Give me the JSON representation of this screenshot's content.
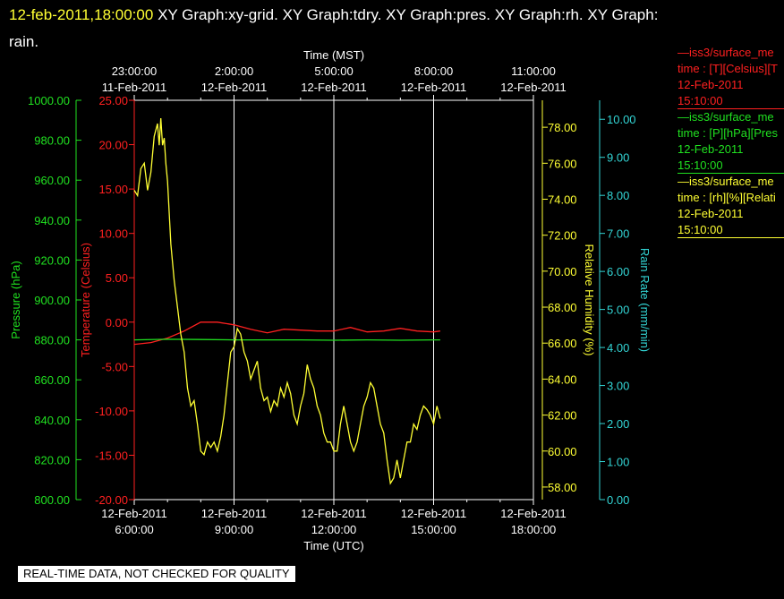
{
  "header": {
    "timestamp": "12-feb-2011,18:00:00",
    "graphs_text": "XY Graph:xy-grid.  XY Graph:tdry.  XY Graph:pres.  XY Graph:rh.  XY Graph:",
    "graphs_text_2": "rain."
  },
  "legend": [
    {
      "line": "iss3/surface_me",
      "units": "time : [T][Celsius][T",
      "date": "12-Feb-2011",
      "time": "15:10:00",
      "color": "#ff2020"
    },
    {
      "line": "iss3/surface_me",
      "units": "time : [P][hPa][Pres",
      "date": "12-Feb-2011",
      "time": "15:10:00",
      "color": "#20e020"
    },
    {
      "line": "iss3/surface_me",
      "units": "time : [rh][%][Relati",
      "date": "12-Feb-2011",
      "time": "15:10:00",
      "color": "#ffff33"
    }
  ],
  "disclaimer": "REAL-TIME DATA, NOT CHECKED FOR QUALITY",
  "colors": {
    "temperature": "#ff2020",
    "pressure": "#20e020",
    "humidity": "#ffff33",
    "rain": "#33d6d6",
    "grid": "#ffffff"
  },
  "chart_data": {
    "type": "line",
    "x_top_label": "Time (MST)",
    "x_bottom_label": "Time (UTC)",
    "x_bottom_ticks": [
      {
        "date": "12-Feb-2011",
        "time": "6:00:00"
      },
      {
        "date": "12-Feb-2011",
        "time": "9:00:00"
      },
      {
        "date": "12-Feb-2011",
        "time": "12:00:00"
      },
      {
        "date": "12-Feb-2011",
        "time": "15:00:00"
      },
      {
        "date": "12-Feb-2011",
        "time": "18:00:00"
      }
    ],
    "x_top_ticks": [
      {
        "time": "23:00:00",
        "date": "11-Feb-2011"
      },
      {
        "time": "2:00:00",
        "date": "12-Feb-2011"
      },
      {
        "time": "5:00:00",
        "date": "12-Feb-2011"
      },
      {
        "time": "8:00:00",
        "date": "12-Feb-2011"
      },
      {
        "time": "11:00:00",
        "date": "12-Feb-2011"
      }
    ],
    "xlim_utc_hours": [
      6,
      18
    ],
    "axes": [
      {
        "name": "pressure",
        "label": "Pressure (hPa)",
        "range": [
          800,
          1000
        ],
        "ticks": [
          "800.00",
          "820.00",
          "840.00",
          "860.00",
          "880.00",
          "900.00",
          "920.00",
          "940.00",
          "960.00",
          "980.00",
          "1000.00"
        ]
      },
      {
        "name": "temperature",
        "label": "Temperature (Celsius)",
        "range": [
          -20,
          25
        ],
        "ticks": [
          "-20.00",
          "-15.00",
          "-10.00",
          "-5.00",
          "0.00",
          "5.00",
          "10.00",
          "15.00",
          "20.00",
          "25.00"
        ]
      },
      {
        "name": "humidity",
        "label": "Relative Humidity (%)",
        "range": [
          57.3,
          79.5
        ],
        "ticks": [
          "58.00",
          "60.00",
          "62.00",
          "64.00",
          "66.00",
          "68.00",
          "70.00",
          "72.00",
          "74.00",
          "76.00",
          "78.00"
        ]
      },
      {
        "name": "rain",
        "label": "Rain Rate (mm/min)",
        "range": [
          0,
          10.5
        ],
        "ticks": [
          "0.00",
          "1.00",
          "2.00",
          "3.00",
          "4.00",
          "5.00",
          "6.00",
          "7.00",
          "8.00",
          "9.00",
          "10.00"
        ]
      }
    ],
    "series": [
      {
        "name": "iss3/surface_me temperature",
        "axis": "temperature",
        "x": [
          6.0,
          6.5,
          7.0,
          7.5,
          8.0,
          8.5,
          9.0,
          9.5,
          10.0,
          10.5,
          11.0,
          11.5,
          12.0,
          12.5,
          13.0,
          13.5,
          14.0,
          14.5,
          15.0,
          15.2
        ],
        "y": [
          -2.5,
          -2.3,
          -1.8,
          -1.0,
          0.0,
          0.0,
          -0.3,
          -0.8,
          -1.2,
          -0.8,
          -0.9,
          -1.0,
          -1.0,
          -0.6,
          -1.1,
          -1.0,
          -0.7,
          -1.0,
          -1.1,
          -1.0
        ]
      },
      {
        "name": "iss3/surface_me pressure",
        "axis": "pressure",
        "x": [
          6.0,
          7.0,
          8.0,
          9.0,
          10.0,
          11.0,
          12.0,
          13.0,
          14.0,
          15.0,
          15.2
        ],
        "y": [
          880.0,
          880.3,
          880.2,
          880.0,
          880.0,
          880.0,
          879.8,
          880.0,
          879.8,
          880.0,
          880.0
        ]
      },
      {
        "name": "iss3/surface_me rh",
        "axis": "humidity",
        "x": [
          6.0,
          6.1,
          6.2,
          6.3,
          6.4,
          6.5,
          6.6,
          6.7,
          6.75,
          6.8,
          6.85,
          6.9,
          6.95,
          7.0,
          7.1,
          7.2,
          7.3,
          7.4,
          7.5,
          7.6,
          7.7,
          7.8,
          7.9,
          8.0,
          8.1,
          8.2,
          8.3,
          8.4,
          8.5,
          8.6,
          8.7,
          8.8,
          8.9,
          9.0,
          9.1,
          9.2,
          9.3,
          9.4,
          9.5,
          9.6,
          9.7,
          9.8,
          9.9,
          10.0,
          10.1,
          10.2,
          10.3,
          10.4,
          10.5,
          10.6,
          10.7,
          10.8,
          10.9,
          11.0,
          11.1,
          11.2,
          11.3,
          11.4,
          11.5,
          11.6,
          11.7,
          11.8,
          11.9,
          12.0,
          12.1,
          12.2,
          12.3,
          12.4,
          12.5,
          12.6,
          12.7,
          12.8,
          12.9,
          13.0,
          13.1,
          13.2,
          13.3,
          13.4,
          13.5,
          13.6,
          13.7,
          13.8,
          13.9,
          14.0,
          14.1,
          14.2,
          14.3,
          14.4,
          14.5,
          14.6,
          14.7,
          14.8,
          14.9,
          15.0,
          15.1,
          15.2
        ],
        "y": [
          74.5,
          74.2,
          75.7,
          76.0,
          74.5,
          75.5,
          77.5,
          78.2,
          77.0,
          78.5,
          77.0,
          77.4,
          76.0,
          75.0,
          71.5,
          69.5,
          68.0,
          66.5,
          65.5,
          63.5,
          62.5,
          62.8,
          61.5,
          60.0,
          59.8,
          60.5,
          60.2,
          60.5,
          60.0,
          60.8,
          62.0,
          63.8,
          65.5,
          65.8,
          66.8,
          66.5,
          65.5,
          65.0,
          64.0,
          64.5,
          65.0,
          63.5,
          62.8,
          63.0,
          62.2,
          62.8,
          62.5,
          63.5,
          63.0,
          63.8,
          63.2,
          62.0,
          61.5,
          62.5,
          63.2,
          64.8,
          64.0,
          63.5,
          62.5,
          62.0,
          61.0,
          60.5,
          60.5,
          60.0,
          60.0,
          61.5,
          62.5,
          61.5,
          60.5,
          60.0,
          60.5,
          61.5,
          62.5,
          63.0,
          63.8,
          63.5,
          62.5,
          61.5,
          61.0,
          59.5,
          58.2,
          58.5,
          59.5,
          58.5,
          59.5,
          60.5,
          60.5,
          61.5,
          61.2,
          62.0,
          62.5,
          62.3,
          62.0,
          61.5,
          62.5,
          61.8
        ]
      }
    ]
  }
}
